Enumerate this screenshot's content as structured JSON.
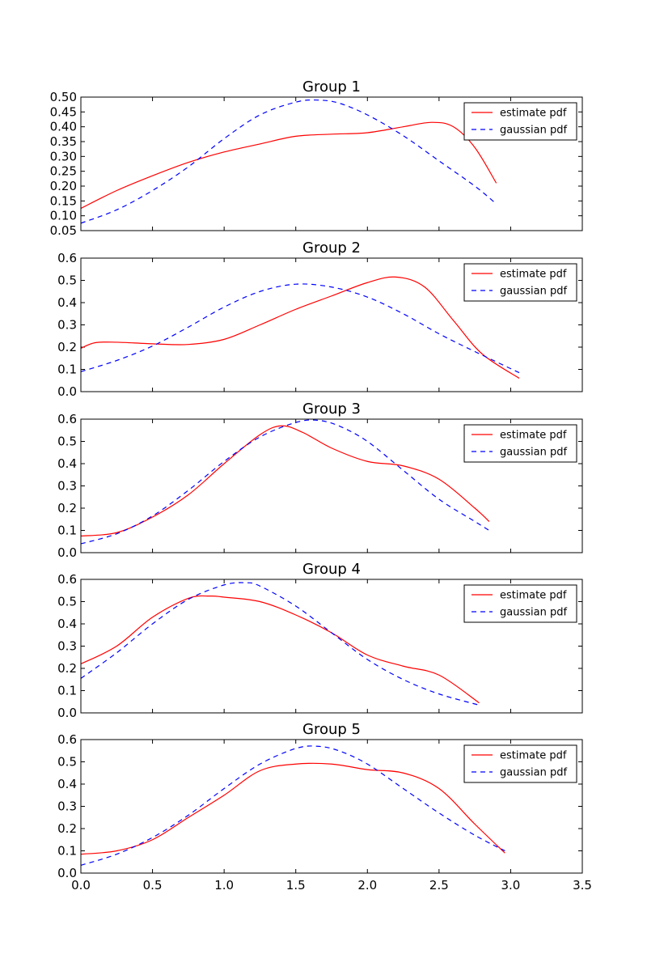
{
  "chart_data": [
    {
      "type": "line",
      "title": "Group 1",
      "xlim": [
        0,
        3.5
      ],
      "ylim": [
        0.05,
        0.5
      ],
      "yticks": [
        "0.05",
        "0.10",
        "0.15",
        "0.20",
        "0.25",
        "0.30",
        "0.35",
        "0.40",
        "0.45",
        "0.50"
      ],
      "legend": "top-right",
      "series": [
        {
          "name": "estimate pdf",
          "color": "#ff0000",
          "style": "solid",
          "x": [
            0,
            0.25,
            0.5,
            0.75,
            1.0,
            1.25,
            1.5,
            1.75,
            2.0,
            2.25,
            2.45,
            2.6,
            2.75,
            2.9
          ],
          "y": [
            0.125,
            0.185,
            0.235,
            0.28,
            0.315,
            0.342,
            0.368,
            0.375,
            0.38,
            0.4,
            0.415,
            0.4,
            0.33,
            0.21
          ]
        },
        {
          "name": "gaussian pdf",
          "color": "#0000ff",
          "style": "dashed",
          "x": [
            0,
            0.25,
            0.5,
            0.75,
            1.0,
            1.25,
            1.5,
            1.65,
            1.8,
            2.0,
            2.25,
            2.5,
            2.75,
            2.9
          ],
          "y": [
            0.075,
            0.12,
            0.185,
            0.265,
            0.36,
            0.44,
            0.483,
            0.49,
            0.48,
            0.44,
            0.37,
            0.285,
            0.2,
            0.14
          ]
        }
      ]
    },
    {
      "type": "line",
      "title": "Group 2",
      "xlim": [
        0,
        3.5
      ],
      "ylim": [
        0,
        0.6
      ],
      "yticks": [
        "0.0",
        "0.1",
        "0.2",
        "0.3",
        "0.4",
        "0.5",
        "0.6"
      ],
      "legend": "top-right",
      "series": [
        {
          "name": "estimate pdf",
          "color": "#ff0000",
          "style": "solid",
          "x": [
            0,
            0.1,
            0.25,
            0.5,
            0.75,
            1.0,
            1.25,
            1.5,
            1.75,
            2.0,
            2.2,
            2.4,
            2.6,
            2.8,
            3.06
          ],
          "y": [
            0.195,
            0.22,
            0.222,
            0.215,
            0.212,
            0.235,
            0.3,
            0.37,
            0.43,
            0.49,
            0.515,
            0.47,
            0.32,
            0.17,
            0.06
          ]
        },
        {
          "name": "gaussian pdf",
          "color": "#0000ff",
          "style": "dashed",
          "x": [
            0,
            0.25,
            0.5,
            0.75,
            1.0,
            1.25,
            1.5,
            1.75,
            2.0,
            2.25,
            2.5,
            2.75,
            3.06
          ],
          "y": [
            0.09,
            0.14,
            0.205,
            0.29,
            0.38,
            0.45,
            0.483,
            0.47,
            0.425,
            0.35,
            0.26,
            0.18,
            0.085
          ]
        }
      ]
    },
    {
      "type": "line",
      "title": "Group 3",
      "xlim": [
        0,
        3.5
      ],
      "ylim": [
        0,
        0.6
      ],
      "yticks": [
        "0.0",
        "0.1",
        "0.2",
        "0.3",
        "0.4",
        "0.5",
        "0.6"
      ],
      "legend": "top-right",
      "series": [
        {
          "name": "estimate pdf",
          "color": "#ff0000",
          "style": "solid",
          "x": [
            0,
            0.25,
            0.5,
            0.75,
            1.0,
            1.25,
            1.4,
            1.55,
            1.75,
            2.0,
            2.25,
            2.5,
            2.75,
            2.85
          ],
          "y": [
            0.075,
            0.09,
            0.16,
            0.26,
            0.4,
            0.53,
            0.57,
            0.54,
            0.47,
            0.41,
            0.39,
            0.33,
            0.2,
            0.14
          ]
        },
        {
          "name": "gaussian pdf",
          "color": "#0000ff",
          "style": "dashed",
          "x": [
            0,
            0.25,
            0.5,
            0.75,
            1.0,
            1.25,
            1.5,
            1.65,
            1.8,
            2.0,
            2.25,
            2.5,
            2.75,
            2.85
          ],
          "y": [
            0.04,
            0.085,
            0.165,
            0.28,
            0.41,
            0.52,
            0.585,
            0.595,
            0.57,
            0.5,
            0.37,
            0.24,
            0.14,
            0.1
          ]
        }
      ]
    },
    {
      "type": "line",
      "title": "Group 4",
      "xlim": [
        0,
        3.5
      ],
      "ylim": [
        0,
        0.6
      ],
      "yticks": [
        "0.0",
        "0.1",
        "0.2",
        "0.3",
        "0.4",
        "0.5",
        "0.6"
      ],
      "legend": "top-right",
      "series": [
        {
          "name": "estimate pdf",
          "color": "#ff0000",
          "style": "solid",
          "x": [
            0,
            0.25,
            0.5,
            0.75,
            0.9,
            1.0,
            1.25,
            1.5,
            1.75,
            2.0,
            2.25,
            2.5,
            2.78
          ],
          "y": [
            0.22,
            0.3,
            0.43,
            0.515,
            0.525,
            0.52,
            0.5,
            0.44,
            0.36,
            0.26,
            0.21,
            0.17,
            0.045
          ]
        },
        {
          "name": "gaussian pdf",
          "color": "#0000ff",
          "style": "dashed",
          "x": [
            0,
            0.25,
            0.5,
            0.75,
            1.0,
            1.15,
            1.25,
            1.5,
            1.75,
            2.0,
            2.25,
            2.5,
            2.78
          ],
          "y": [
            0.155,
            0.27,
            0.4,
            0.51,
            0.575,
            0.585,
            0.57,
            0.48,
            0.36,
            0.24,
            0.15,
            0.085,
            0.035
          ]
        }
      ]
    },
    {
      "type": "line",
      "title": "Group 5",
      "xlim": [
        0,
        3.5
      ],
      "ylim": [
        0,
        0.6
      ],
      "yticks": [
        "0.0",
        "0.1",
        "0.2",
        "0.3",
        "0.4",
        "0.5",
        "0.6"
      ],
      "xticks": [
        "0.0",
        "0.5",
        "1.0",
        "1.5",
        "2.0",
        "2.5",
        "3.0",
        "3.5"
      ],
      "legend": "top-right",
      "series": [
        {
          "name": "estimate pdf",
          "color": "#ff0000",
          "style": "solid",
          "x": [
            0,
            0.25,
            0.5,
            0.75,
            1.0,
            1.25,
            1.5,
            1.75,
            2.0,
            2.25,
            2.5,
            2.75,
            2.96
          ],
          "y": [
            0.085,
            0.1,
            0.15,
            0.25,
            0.35,
            0.46,
            0.49,
            0.49,
            0.465,
            0.45,
            0.38,
            0.22,
            0.09
          ]
        },
        {
          "name": "gaussian pdf",
          "color": "#0000ff",
          "style": "dashed",
          "x": [
            0,
            0.25,
            0.5,
            0.75,
            1.0,
            1.25,
            1.5,
            1.65,
            1.8,
            2.0,
            2.25,
            2.5,
            2.75,
            2.96
          ],
          "y": [
            0.035,
            0.085,
            0.16,
            0.26,
            0.38,
            0.49,
            0.56,
            0.57,
            0.55,
            0.49,
            0.38,
            0.27,
            0.17,
            0.1
          ]
        }
      ]
    }
  ]
}
